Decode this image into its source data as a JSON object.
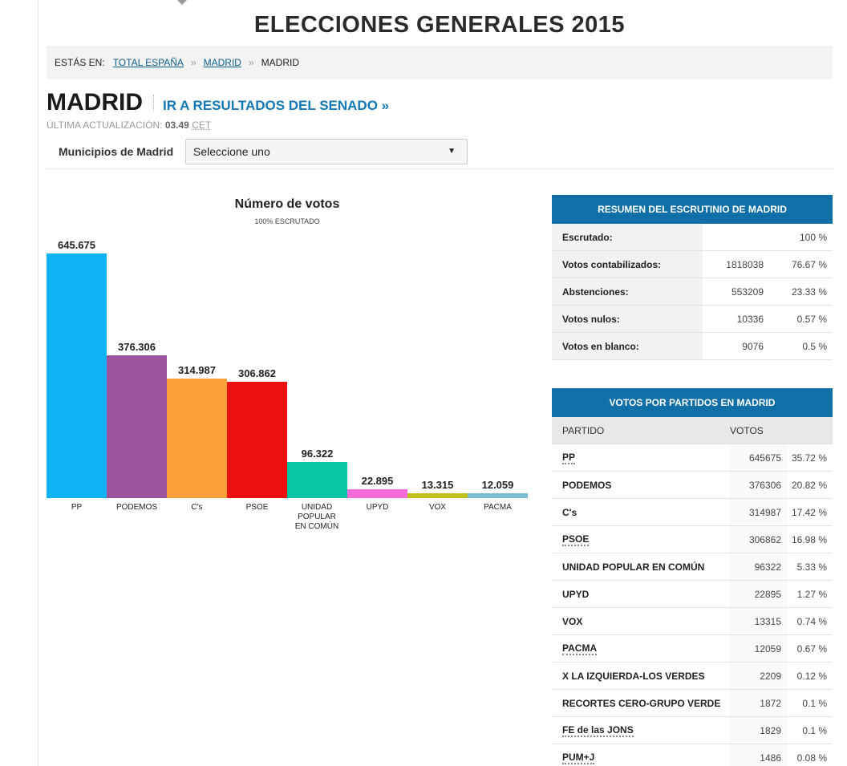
{
  "header": {
    "title": "ELECCIONES GENERALES 2015"
  },
  "breadcrumb": {
    "label": "ESTÁS EN:",
    "items": [
      "TOTAL ESPAÑA",
      "MADRID"
    ],
    "current": "MADRID",
    "separator": "»"
  },
  "region": {
    "title": "MADRID",
    "senado_link": "IR A RESULTADOS DEL SENADO »",
    "update_label": "ÚLTIMA ACTUALIZACIÓN:",
    "update_time": "03.49",
    "update_tz": "CET"
  },
  "municipios": {
    "label": "Municipios de Madrid",
    "selected": "Seleccione uno"
  },
  "chart_data": {
    "type": "bar",
    "title": "Número de votos",
    "subtitle": "100% ESCRUTADO",
    "categories": [
      "PP",
      "PODEMOS",
      "C's",
      "PSOE",
      "UNIDAD POPULAR EN COMÚN",
      "UPYD",
      "VOX",
      "PACMA"
    ],
    "values": [
      645675,
      376306,
      314987,
      306862,
      96322,
      22895,
      13315,
      12059
    ],
    "value_labels": [
      "645.675",
      "376.306",
      "314.987",
      "306.862",
      "96.322",
      "22.895",
      "13.315",
      "12.059"
    ],
    "colors": [
      "#0fb2f2",
      "#9b539c",
      "#fba13a",
      "#ed1010",
      "#08c6a4",
      "#f76bd8",
      "#c2c01c",
      "#7abcd0"
    ]
  },
  "summary": {
    "title": "RESUMEN DEL ESCRUTINIO DE MADRID",
    "rows": [
      {
        "label": "Escrutado:",
        "num": "",
        "pct": "100 %"
      },
      {
        "label": "Votos contabilizados:",
        "num": "1818038",
        "pct": "76.67 %"
      },
      {
        "label": "Abstenciones:",
        "num": "553209",
        "pct": "23.33 %"
      },
      {
        "label": "Votos nulos:",
        "num": "10336",
        "pct": "0.57 %"
      },
      {
        "label": "Votos en blanco:",
        "num": "9076",
        "pct": "0.5 %"
      }
    ]
  },
  "parties_table": {
    "title": "VOTOS POR PARTIDOS EN MADRID",
    "col_partido": "PARTIDO",
    "col_votos": "VOTOS",
    "rows": [
      {
        "name": "PP",
        "votes": "645675",
        "pct": "35.72 %",
        "link": true
      },
      {
        "name": "PODEMOS",
        "votes": "376306",
        "pct": "20.82 %",
        "link": false
      },
      {
        "name": "C's",
        "votes": "314987",
        "pct": "17.42 %",
        "link": false
      },
      {
        "name": "PSOE",
        "votes": "306862",
        "pct": "16.98 %",
        "link": true
      },
      {
        "name": "UNIDAD POPULAR EN COMÚN",
        "votes": "96322",
        "pct": "5.33 %",
        "link": false
      },
      {
        "name": "UPYD",
        "votes": "22895",
        "pct": "1.27 %",
        "link": false
      },
      {
        "name": "VOX",
        "votes": "13315",
        "pct": "0.74 %",
        "link": false
      },
      {
        "name": "PACMA",
        "votes": "12059",
        "pct": "0.67 %",
        "link": true
      },
      {
        "name": "X LA IZQUIERDA-LOS VERDES",
        "votes": "2209",
        "pct": "0.12 %",
        "link": false
      },
      {
        "name": "RECORTES CERO-GRUPO VERDE",
        "votes": "1872",
        "pct": "0.1 %",
        "link": false
      },
      {
        "name": "FE de las JONS",
        "votes": "1829",
        "pct": "0.1 %",
        "link": true
      },
      {
        "name": "PUM+J",
        "votes": "1486",
        "pct": "0.08 %",
        "link": true
      }
    ]
  }
}
